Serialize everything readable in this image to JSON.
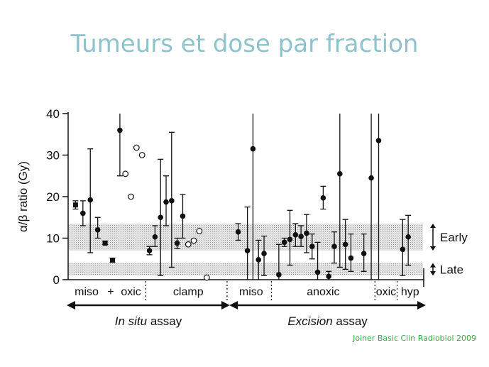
{
  "slide": {
    "title": "Tumeurs et dose par fraction",
    "citation": "Joiner Basic Clin Radiobiol 2009"
  },
  "colors": {
    "title": "#8fc3cc",
    "citation": "#3aa64a",
    "band_fill": "#d6d6d6",
    "ink": "#111111"
  },
  "chart_data": {
    "type": "scatter",
    "ylabel": "α/β ratio (Gy)",
    "ylim": [
      0,
      40
    ],
    "yticks": [
      0,
      10,
      20,
      30,
      40
    ],
    "grid": false,
    "bands": [
      {
        "label": "Early",
        "y0": 7,
        "y1": 13.5
      },
      {
        "label": "Late",
        "y0": 1,
        "y1": 4
      }
    ],
    "groups": [
      {
        "label": "miso",
        "x0": 0,
        "x1": 10
      },
      {
        "label": "+",
        "x0": 10,
        "x1": 13
      },
      {
        "label": "oxic",
        "x0": 13,
        "x1": 21
      },
      {
        "label": "clamp",
        "x0": 21,
        "x1": 44
      },
      {
        "label": "miso",
        "x0": 44,
        "x1": 55
      },
      {
        "label": "anoxic",
        "x0": 55,
        "x1": 83
      },
      {
        "label": "oxic",
        "x0": 83,
        "x1": 89
      },
      {
        "label": "hyp",
        "x0": 89,
        "x1": 96
      }
    ],
    "dividers": [
      21,
      43,
      55,
      83,
      89
    ],
    "assays": [
      {
        "label": "In situ assay",
        "x0": 0,
        "x1": 43
      },
      {
        "label": "Excision assay",
        "x0": 44,
        "x1": 96
      }
    ],
    "points": [
      {
        "x": 2,
        "y": 18,
        "lo": 17,
        "hi": 19,
        "marker": "square"
      },
      {
        "x": 4,
        "y": 16,
        "lo": 13,
        "hi": 19,
        "marker": "filled"
      },
      {
        "x": 6,
        "y": 19.2,
        "lo": 6.5,
        "hi": 31.5,
        "marker": "filled"
      },
      {
        "x": 8,
        "y": 12,
        "lo": 10,
        "hi": 15,
        "marker": "filled"
      },
      {
        "x": 10,
        "y": 8.8,
        "lo": 8.5,
        "hi": 9.3,
        "marker": "square"
      },
      {
        "x": 12,
        "y": 4.7,
        "lo": 4.2,
        "hi": 5.2,
        "marker": "square"
      },
      {
        "x": 14,
        "y": 36,
        "lo": 25,
        "hi": 40,
        "marker": "filled"
      },
      {
        "x": 15.5,
        "y": 25.5,
        "marker": "open"
      },
      {
        "x": 17,
        "y": 20,
        "marker": "open"
      },
      {
        "x": 18.5,
        "y": 31.8,
        "marker": "open"
      },
      {
        "x": 20,
        "y": 30,
        "marker": "open"
      },
      {
        "x": 22,
        "y": 7,
        "lo": 6,
        "hi": 8,
        "marker": "filled"
      },
      {
        "x": 23.5,
        "y": 10.3,
        "lo": 8,
        "hi": 13,
        "marker": "filled"
      },
      {
        "x": 25,
        "y": 15,
        "lo": 1,
        "hi": 29,
        "marker": "filled"
      },
      {
        "x": 26.5,
        "y": 18.7,
        "lo": 13,
        "hi": 25,
        "marker": "filled"
      },
      {
        "x": 28,
        "y": 19,
        "lo": 3,
        "hi": 35.5,
        "marker": "filled"
      },
      {
        "x": 29.5,
        "y": 8.8,
        "lo": 7.5,
        "hi": 10,
        "marker": "filled"
      },
      {
        "x": 31,
        "y": 15.3,
        "lo": 10,
        "hi": 20.5,
        "marker": "filled"
      },
      {
        "x": 32.5,
        "y": 8.5,
        "marker": "open"
      },
      {
        "x": 34,
        "y": 9.4,
        "marker": "open"
      },
      {
        "x": 35.5,
        "y": 11.7,
        "marker": "open"
      },
      {
        "x": 37.5,
        "y": 0.5,
        "marker": "open"
      },
      {
        "x": 46,
        "y": 11.5,
        "lo": 9.5,
        "hi": 13.5,
        "marker": "filled"
      },
      {
        "x": 48.5,
        "y": 7,
        "lo": 0,
        "hi": 17.5,
        "marker": "filled"
      },
      {
        "x": 50,
        "y": 31.5,
        "lo": 0,
        "hi": 40,
        "marker": "filled"
      },
      {
        "x": 51.5,
        "y": 4.8,
        "lo": 0,
        "hi": 9.5,
        "marker": "filled"
      },
      {
        "x": 53,
        "y": 6.3,
        "lo": 1,
        "hi": 10.5,
        "marker": "filled"
      },
      {
        "x": 57,
        "y": 1.2,
        "lo": 0,
        "hi": 8.5,
        "marker": "filled"
      },
      {
        "x": 58.5,
        "y": 9,
        "lo": 8,
        "hi": 10,
        "marker": "filled"
      },
      {
        "x": 60,
        "y": 9.7,
        "lo": 3.5,
        "hi": 16.7,
        "marker": "filled"
      },
      {
        "x": 61.5,
        "y": 10.8,
        "lo": 8,
        "hi": 13.5,
        "marker": "filled"
      },
      {
        "x": 63,
        "y": 10.4,
        "lo": 8,
        "hi": 13,
        "marker": "filled"
      },
      {
        "x": 64.5,
        "y": 11.2,
        "lo": 6.5,
        "hi": 15.7,
        "marker": "filled"
      },
      {
        "x": 66,
        "y": 8,
        "lo": 5,
        "hi": 11,
        "marker": "filled"
      },
      {
        "x": 67.5,
        "y": 1.8,
        "lo": 0,
        "hi": 9,
        "marker": "filled"
      },
      {
        "x": 69,
        "y": 19.7,
        "lo": 17,
        "hi": 22.5,
        "marker": "filled"
      },
      {
        "x": 70.5,
        "y": 0.8,
        "lo": 0,
        "hi": 2,
        "marker": "filled"
      },
      {
        "x": 72,
        "y": 8,
        "lo": 4,
        "hi": 11.5,
        "marker": "filled"
      },
      {
        "x": 73.5,
        "y": 25.5,
        "lo": 3,
        "hi": 40,
        "marker": "filled"
      },
      {
        "x": 75,
        "y": 8.5,
        "lo": 2.5,
        "hi": 14.5,
        "marker": "filled"
      },
      {
        "x": 76.5,
        "y": 5.2,
        "lo": 2,
        "hi": 11,
        "marker": "filled"
      },
      {
        "x": 80,
        "y": 6.3,
        "lo": 2,
        "hi": 11,
        "marker": "filled"
      },
      {
        "x": 82,
        "y": 24.5,
        "lo": 0,
        "hi": 40,
        "marker": "filled"
      },
      {
        "x": 84,
        "y": 33.5,
        "lo": 0,
        "hi": 40,
        "marker": "filled"
      },
      {
        "x": 90.5,
        "y": 7.3,
        "lo": 1,
        "hi": 14.5,
        "marker": "filled"
      },
      {
        "x": 92,
        "y": 10.3,
        "lo": 3.5,
        "hi": 15.5,
        "marker": "filled"
      }
    ]
  }
}
